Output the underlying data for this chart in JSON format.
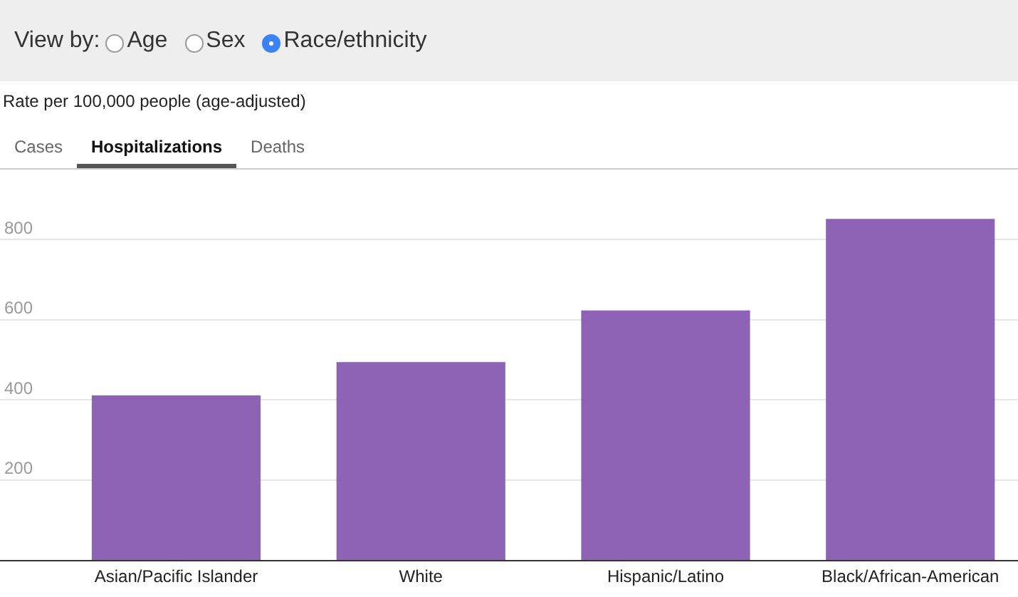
{
  "chart_data": {
    "type": "bar",
    "subtitle": "Rate per 100,000 people (age-adjusted)",
    "annotations": [
      "View by:",
      "Age",
      "Sex",
      "Race/ethnicity",
      "Cases",
      "Hospitalizations",
      "Deaths"
    ],
    "categories": [
      "Asian/Pacific Islander",
      "White",
      "Hispanic/Latino",
      "Black/African-American"
    ],
    "values": [
      411,
      494,
      623,
      852
    ],
    "color": "#8e63b6",
    "ylim": [
      0,
      975
    ],
    "yticks": [
      200,
      400,
      600,
      800
    ],
    "grid": "y"
  }
}
